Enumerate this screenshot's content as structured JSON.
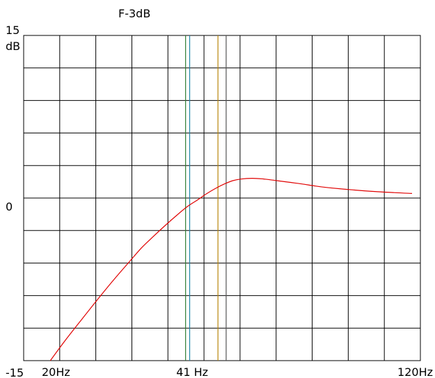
{
  "chart_data": {
    "type": "line",
    "title": "F-3dB",
    "y_unit": "dB",
    "ylim": [
      -15,
      15
    ],
    "y_ticks": [
      {
        "value": 15,
        "label": "15"
      },
      {
        "value": 0,
        "label": "0"
      },
      {
        "value": -15,
        "label": "-15"
      }
    ],
    "x_scale": "log",
    "xlim": [
      18,
      125
    ],
    "x_ticks": [
      {
        "value": 20,
        "label": "20Hz"
      },
      {
        "value": 41,
        "label": "41 Hz"
      },
      {
        "value": 120,
        "label": "120Hz"
      }
    ],
    "grid": true,
    "markers": [
      {
        "x": 39.7,
        "color": "#2e7d32"
      },
      {
        "x": 40.5,
        "color": "#1e88a8"
      },
      {
        "x": 46.5,
        "color": "#b8860b"
      },
      {
        "x": 48.4,
        "color": "#555555"
      }
    ],
    "series": [
      {
        "color": "#e00000",
        "x": [
          20.5,
          22,
          24,
          26,
          28,
          30,
          32,
          34,
          36,
          38,
          40,
          42,
          44,
          46,
          48,
          50,
          52,
          55,
          58,
          62,
          66,
          70,
          75,
          80,
          90,
          100,
          110,
          120
        ],
        "y": [
          -15,
          -13.2,
          -11.1,
          -9.2,
          -7.5,
          -6.0,
          -4.6,
          -3.5,
          -2.5,
          -1.6,
          -0.8,
          -0.2,
          0.4,
          0.9,
          1.3,
          1.6,
          1.75,
          1.82,
          1.76,
          1.6,
          1.45,
          1.3,
          1.1,
          0.95,
          0.75,
          0.6,
          0.5,
          0.42
        ]
      }
    ]
  }
}
